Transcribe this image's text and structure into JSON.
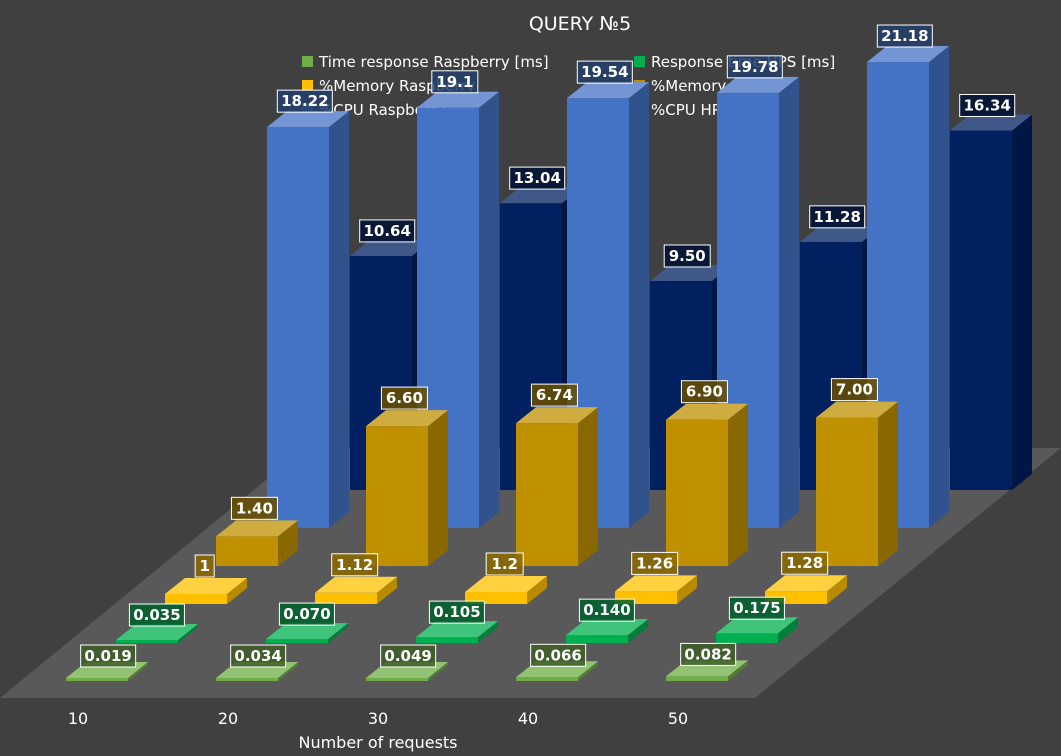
{
  "chart_data": {
    "type": "bar",
    "style": "3d-column",
    "title": "QUERY №5",
    "xlabel": "Number of requests",
    "ylabel": "",
    "categories": [
      "10",
      "20",
      "30",
      "40",
      "50"
    ],
    "legend_position": "top",
    "grid": false,
    "series": [
      {
        "name": "Time response Raspberry [ms]",
        "color": "#70ad47",
        "values": [
          0.019,
          0.034,
          0.049,
          0.066,
          0.082
        ],
        "labels": [
          "0.019",
          "0.034",
          "0.049",
          "0.066",
          "0.082"
        ]
      },
      {
        "name": "Response time HPS [ms]",
        "color": "#00b050",
        "values": [
          0.035,
          0.07,
          0.105,
          0.14,
          0.175
        ],
        "labels": [
          "0.035",
          "0.070",
          "0.105",
          "0.140",
          "0.175"
        ]
      },
      {
        "name": "%Memory Raspberry",
        "color": "#ffc000",
        "values": [
          1,
          1.12,
          1.2,
          1.26,
          1.28
        ],
        "labels": [
          "1",
          "1.12",
          "1.2",
          "1.26",
          "1.28"
        ]
      },
      {
        "name": "%Memory HPS",
        "color": "#bf9000",
        "values": [
          1.4,
          6.6,
          6.74,
          6.9,
          7.0
        ],
        "labels": [
          "1.40",
          "6.60",
          "6.74",
          "6.90",
          "7.00"
        ]
      },
      {
        "name": "%CPU Raspberry",
        "color": "#4472c4",
        "values": [
          18.22,
          19.1,
          19.54,
          19.78,
          21.18
        ],
        "labels": [
          "18.22",
          "19.1",
          "19.54",
          "19.78",
          "21.18"
        ]
      },
      {
        "name": "%CPU HPS",
        "color": "#002060",
        "values": [
          10.64,
          13.04,
          9.5,
          11.28,
          16.34
        ],
        "labels": [
          "10.64",
          "13.04",
          "9.50",
          "11.28",
          "16.34"
        ]
      }
    ]
  }
}
